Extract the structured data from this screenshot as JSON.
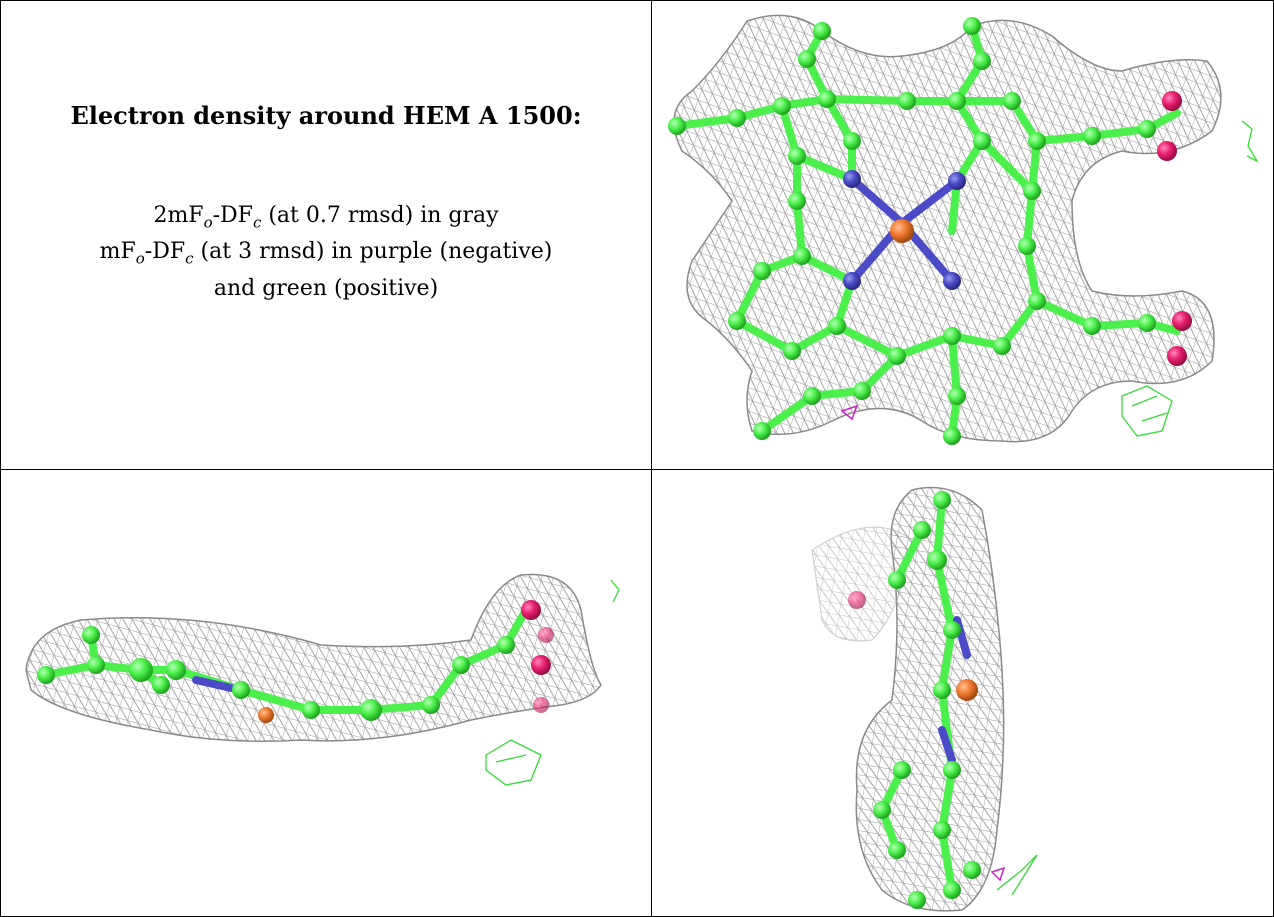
{
  "figure": {
    "title": "Electron density around HEM A 1500:",
    "legend": {
      "line1": {
        "pre": "2mF",
        "sub1": "o",
        "mid": "-DF",
        "sub2": "c",
        "post": " (at 0.7 rmsd) in gray"
      },
      "line2": {
        "pre": "mF",
        "sub1": "o",
        "mid": "-DF",
        "sub2": "c",
        "post": " (at 3 rmsd) in purple (negative)"
      },
      "line3": "and green (positive)"
    },
    "colors": {
      "mesh_2fofc": "#9a9a9a",
      "carbon": "#4cf04c",
      "nitrogen": "#4b4bc8",
      "oxygen": "#e8206e",
      "iron": "#f07a30",
      "fofc_positive": "#33dd33",
      "fofc_negative": "#cc22cc"
    },
    "panels": [
      "face-view",
      "edge-view-horizontal",
      "edge-view-vertical"
    ]
  }
}
